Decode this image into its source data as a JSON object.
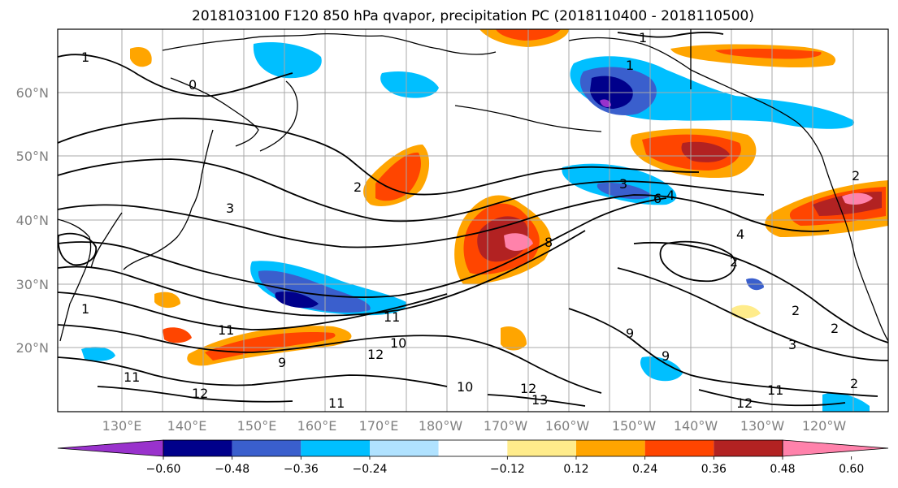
{
  "title": "2018103100 F120 850 hPa qvapor, precipitation PC (2018110400 - 2018110500)",
  "map": {
    "lat_labels": [
      "60°N",
      "50°N",
      "40°N",
      "30°N",
      "20°N"
    ],
    "lon_labels": [
      "130°E",
      "140°E",
      "150°E",
      "160°E",
      "170°E",
      "180°W",
      "170°W",
      "160°W",
      "150°W",
      "140°W",
      "130°W",
      "120°W"
    ],
    "contour_labels": [
      "1",
      "1",
      "1",
      "0",
      "2",
      "2",
      "3",
      "3",
      "4",
      "4",
      "6",
      "8",
      "2",
      "2",
      "2",
      "3",
      "9",
      "9",
      "9",
      "10",
      "10",
      "11",
      "11",
      "11",
      "11",
      "11",
      "12",
      "12",
      "12",
      "12",
      "13",
      "1",
      "2"
    ],
    "grid": true
  },
  "colorbar": {
    "tick_labels": [
      "−0.60",
      "−0.48",
      "−0.36",
      "−0.24",
      "−0.12",
      "0.12",
      "0.24",
      "0.36",
      "0.48",
      "0.60"
    ],
    "colors": [
      "#9932cc",
      "#00008b",
      "#3a5fcd",
      "#00bfff",
      "#b0e2ff",
      "#ffffff",
      "#ffec8b",
      "#ffa500",
      "#ff4500",
      "#b22222",
      "#ff82ab"
    ],
    "extend": "both"
  }
}
